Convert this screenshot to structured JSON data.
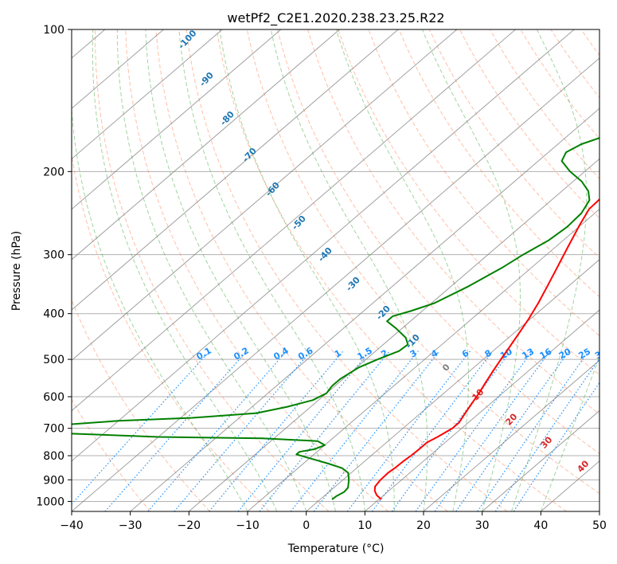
{
  "chart_data": {
    "type": "line",
    "chart_kind": "skew-T log-P diagram",
    "title": "wetPf2_C2E1.2020.238.23.25.R22",
    "xlabel": "Temperature (°C)",
    "ylabel": "Pressure (hPa)",
    "xlim": [
      -40,
      50
    ],
    "ylim": [
      1050,
      100
    ],
    "y_scale": "log",
    "grid": true,
    "x_ticks": [
      -40,
      -30,
      -20,
      -10,
      0,
      10,
      20,
      30,
      40,
      50
    ],
    "x_tick_labels": [
      "−40",
      "−30",
      "−20",
      "−10",
      "0",
      "10",
      "20",
      "30",
      "40",
      "50"
    ],
    "y_ticks": [
      100,
      200,
      300,
      400,
      500,
      600,
      700,
      800,
      900,
      1000
    ],
    "y_tick_labels": [
      "100",
      "200",
      "300",
      "400",
      "500",
      "600",
      "700",
      "800",
      "900",
      "1000"
    ],
    "series": [
      {
        "color": "#ff0000",
        "points": [
          [
            990,
            10.4
          ],
          [
            970,
            8.8
          ],
          [
            950,
            7.6
          ],
          [
            930,
            6.8
          ],
          [
            900,
            6.4
          ],
          [
            870,
            6.3
          ],
          [
            850,
            6.5
          ],
          [
            820,
            6.6
          ],
          [
            800,
            6.8
          ],
          [
            775,
            6.9
          ],
          [
            750,
            6.9
          ],
          [
            730,
            7.6
          ],
          [
            700,
            8.4
          ],
          [
            680,
            8.4
          ],
          [
            650,
            7.6
          ],
          [
            620,
            6.8
          ],
          [
            590,
            6.0
          ],
          [
            560,
            5.0
          ],
          [
            530,
            4.0
          ],
          [
            500,
            3.0
          ],
          [
            470,
            2.0
          ],
          [
            440,
            0.9
          ],
          [
            410,
            -0.3
          ],
          [
            380,
            -1.8
          ],
          [
            350,
            -3.6
          ],
          [
            320,
            -5.6
          ],
          [
            290,
            -7.8
          ],
          [
            260,
            -10.2
          ],
          [
            240,
            -11.8
          ],
          [
            225,
            -12.0
          ],
          [
            215,
            -10.5
          ],
          [
            205,
            -7.5
          ],
          [
            195,
            -3.5
          ],
          [
            185,
            -0.5
          ],
          [
            175,
            2.0
          ],
          [
            165,
            4.5
          ],
          [
            150,
            9.0
          ],
          [
            135,
            14.0
          ],
          [
            125,
            17.5
          ],
          [
            115,
            19.5
          ],
          [
            105,
            22.0
          ],
          [
            100,
            24.0
          ]
        ]
      },
      {
        "color": "#008000",
        "points": [
          [
            990,
            2.0
          ],
          [
            975,
            2.1
          ],
          [
            955,
            2.6
          ],
          [
            935,
            2.4
          ],
          [
            900,
            1.0
          ],
          [
            870,
            -0.5
          ],
          [
            850,
            -2.5
          ],
          [
            830,
            -6.0
          ],
          [
            810,
            -10.0
          ],
          [
            795,
            -13.0
          ],
          [
            785,
            -13.0
          ],
          [
            775,
            -11.0
          ],
          [
            760,
            -10.0
          ],
          [
            745,
            -12.0
          ],
          [
            735,
            -22.0
          ],
          [
            730,
            -40.0
          ],
          [
            715,
            -60.0
          ],
          [
            690,
            -60.0
          ],
          [
            675,
            -50.0
          ],
          [
            665,
            -38.0
          ],
          [
            650,
            -28.0
          ],
          [
            630,
            -24.0
          ],
          [
            610,
            -21.0
          ],
          [
            590,
            -20.0
          ],
          [
            570,
            -20.5
          ],
          [
            550,
            -20.5
          ],
          [
            520,
            -19.6
          ],
          [
            500,
            -18.0
          ],
          [
            480,
            -16.0
          ],
          [
            465,
            -15.8
          ],
          [
            450,
            -17.5
          ],
          [
            430,
            -21.0
          ],
          [
            415,
            -24.0
          ],
          [
            405,
            -24.0
          ],
          [
            395,
            -22.0
          ],
          [
            380,
            -19.5
          ],
          [
            350,
            -17.0
          ],
          [
            320,
            -15.0
          ],
          [
            300,
            -14.0
          ],
          [
            280,
            -12.5
          ],
          [
            262,
            -12.0
          ],
          [
            245,
            -12.3
          ],
          [
            230,
            -13.5
          ],
          [
            220,
            -15.5
          ],
          [
            210,
            -18.5
          ],
          [
            200,
            -22.5
          ],
          [
            190,
            -26.0
          ],
          [
            182,
            -27.0
          ],
          [
            175,
            -26.0
          ],
          [
            168,
            -23.5
          ],
          [
            160,
            -21.0
          ],
          [
            152,
            -22.0
          ],
          [
            145,
            -23.5
          ],
          [
            138,
            -24.0
          ],
          [
            130,
            -22.0
          ],
          [
            125,
            -20.0
          ],
          [
            120,
            -15.5
          ],
          [
            115,
            -11.5
          ],
          [
            110,
            -9.0
          ],
          [
            105,
            -7.5
          ],
          [
            100,
            -6.0
          ]
        ]
      }
    ],
    "isotherm_labels": [
      "-100",
      "-90",
      "-80",
      "-70",
      "-60",
      "-50",
      "-40",
      "-30",
      "-20",
      "-10",
      "0",
      "10",
      "20",
      "30",
      "40"
    ],
    "mixing_ratio_labels": [
      "0.1",
      "0.2",
      "0.4",
      "0.6",
      "1",
      "1.5",
      "2",
      "3",
      "4",
      "6",
      "8",
      "10",
      "13",
      "16",
      "20",
      "25",
      "30",
      "36"
    ],
    "colors": {
      "temperature": "#ff0000",
      "dewpoint": "#008000",
      "dry_adiabat": "#ff7f50",
      "moist_adiabat": "#2ca02c",
      "mixing_ratio": "#1e90ff",
      "isotherm": "#808080",
      "isotherm_label_cold": "#1f77b4",
      "isotherm_label_warm": "#d62728",
      "zero_label": "#808080",
      "reference_curve": "#d2b48c"
    }
  }
}
